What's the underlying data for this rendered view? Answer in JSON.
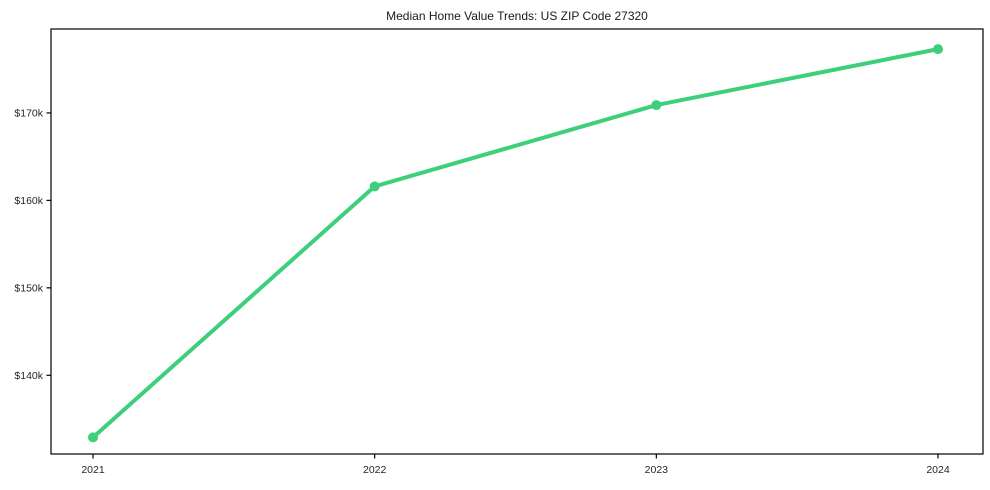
{
  "chart_data": {
    "type": "line",
    "title": "Median Home Value Trends: US ZIP Code 27320",
    "categories": [
      "2021",
      "2022",
      "2023",
      "2024"
    ],
    "values": [
      132900,
      161600,
      170900,
      177300
    ],
    "yticks": [
      140000,
      150000,
      160000,
      170000
    ],
    "ytick_labels": [
      "$140k",
      "$150k",
      "$160k",
      "$170k"
    ],
    "ylim": [
      131000,
      179600
    ],
    "xlabel": "",
    "ylabel": "",
    "grid": false,
    "legend_position": "none",
    "line_color": "#3ecf7b",
    "spine_color": "#000000",
    "marker": "circle"
  }
}
